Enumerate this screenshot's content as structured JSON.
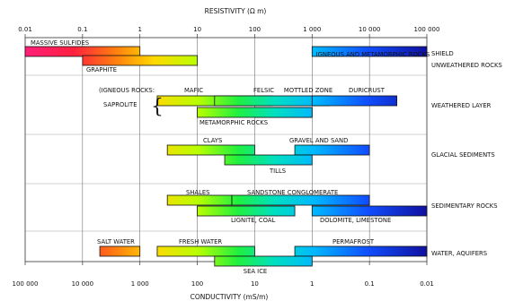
{
  "chart_data": {
    "type": "range-bar",
    "title": "RESISTIVITY (Ω m)",
    "xlabel": "CONDUCTIVITY (mS/m)",
    "x_scale": "log",
    "top_axis": {
      "label": "RESISTIVITY (Ω m)",
      "range": [
        0.01,
        100000
      ],
      "ticks": [
        {
          "value": 0.01,
          "label": "0.01"
        },
        {
          "value": 0.1,
          "label": "0.1"
        },
        {
          "value": 1,
          "label": "1"
        },
        {
          "value": 10,
          "label": "10"
        },
        {
          "value": 100,
          "label": "100"
        },
        {
          "value": 1000,
          "label": "1 000"
        },
        {
          "value": 10000,
          "label": "10 000"
        },
        {
          "value": 100000,
          "label": "100 000"
        }
      ]
    },
    "bottom_axis": {
      "label": "CONDUCTIVITY (mS/m)",
      "ticks": [
        {
          "value": 0.01,
          "label": "100 000"
        },
        {
          "value": 0.1,
          "label": "10 000"
        },
        {
          "value": 1,
          "label": "1 000"
        },
        {
          "value": 10,
          "label": "100"
        },
        {
          "value": 100,
          "label": "10"
        },
        {
          "value": 1000,
          "label": "1"
        },
        {
          "value": 10000,
          "label": "0.1"
        },
        {
          "value": 100000,
          "label": "0.01"
        }
      ]
    },
    "categories": [
      "SHIELD",
      "UNWEATHERED ROCKS",
      "WEATHERED LAYER",
      "GLACIAL SEDIMENTS",
      "SEDIMENTARY ROCKS",
      "WATER, AQUIFERS"
    ],
    "series": [
      {
        "label": "MASSIVE SULFIDES",
        "category": "UNWEATHERED ROCKS",
        "min": 0.01,
        "max": 1
      },
      {
        "label": "GRAPHITE",
        "category": "UNWEATHERED ROCKS",
        "min": 0.1,
        "max": 10
      },
      {
        "label": "IGNEOUS AND METAMORPHIC ROCKS",
        "category": "SHIELD",
        "min": 1000,
        "max": 100000
      },
      {
        "label": "MAFIC",
        "category": "WEATHERED LAYER",
        "min": 2,
        "max": 200
      },
      {
        "label": "FELSIC",
        "category": "WEATHERED LAYER",
        "min": 20,
        "max": 2000
      },
      {
        "label": "MOTTLED ZONE",
        "category": "WEATHERED LAYER",
        "min": 100,
        "max": 1000
      },
      {
        "label": "DURICRUST",
        "category": "WEATHERED LAYER",
        "min": 1000,
        "max": 30000
      },
      {
        "label": "METAMORPHIC ROCKS",
        "category": "WEATHERED LAYER",
        "min": 10,
        "max": 1000
      },
      {
        "label": "CLAYS",
        "category": "GLACIAL SEDIMENTS",
        "min": 3,
        "max": 100
      },
      {
        "label": "GRAVEL AND SAND",
        "category": "GLACIAL SEDIMENTS",
        "min": 500,
        "max": 10000
      },
      {
        "label": "TILLS",
        "category": "GLACIAL SEDIMENTS",
        "min": 30,
        "max": 1000
      },
      {
        "label": "SHALES",
        "category": "SEDIMENTARY ROCKS",
        "min": 3,
        "max": 40
      },
      {
        "label": "SANDSTONE CONGLOMERATE",
        "category": "SEDIMENTARY ROCKS",
        "min": 40,
        "max": 10000
      },
      {
        "label": "LIGNITE, COAL",
        "category": "SEDIMENTARY ROCKS",
        "min": 10,
        "max": 500
      },
      {
        "label": "DOLOMITE, LIMESTONE",
        "category": "SEDIMENTARY ROCKS",
        "min": 1000,
        "max": 100000
      },
      {
        "label": "SALT WATER",
        "category": "WATER, AQUIFERS",
        "min": 0.2,
        "max": 1
      },
      {
        "label": "FRESH WATER",
        "category": "WATER, AQUIFERS",
        "min": 2,
        "max": 100
      },
      {
        "label": "PERMAFROST",
        "category": "WATER, AQUIFERS",
        "min": 500,
        "max": 100000
      },
      {
        "label": "SEA ICE",
        "category": "WATER, AQUIFERS",
        "min": 20,
        "max": 1000
      }
    ],
    "annotations": [
      "(IGNEOUS ROCKS:",
      "SAPROLITE"
    ],
    "grid": true
  }
}
